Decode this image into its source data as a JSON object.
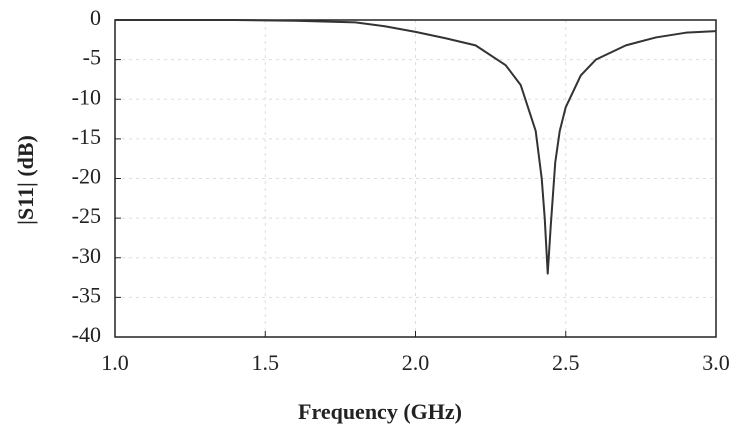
{
  "chart_data": {
    "type": "line",
    "xlabel": "Frequency (GHz)",
    "ylabel": "|S11| (dB)",
    "x": [
      1.0,
      1.2,
      1.4,
      1.6,
      1.8,
      1.9,
      2.0,
      2.1,
      2.2,
      2.3,
      2.35,
      2.4,
      2.42,
      2.43,
      2.44,
      2.45,
      2.465,
      2.48,
      2.5,
      2.55,
      2.6,
      2.7,
      2.8,
      2.9,
      3.0
    ],
    "values": [
      0,
      0,
      0,
      -0.1,
      -0.3,
      -0.8,
      -1.5,
      -2.3,
      -3.2,
      -5.7,
      -8.2,
      -14,
      -20,
      -25,
      -32,
      -26,
      -18,
      -14,
      -11,
      -7,
      -5,
      -3.2,
      -2.2,
      -1.6,
      -1.4
    ],
    "color": "#333333",
    "xlim": [
      1.0,
      3.0
    ],
    "xticks": [
      {
        "value": 1.0,
        "label": "1.0"
      },
      1.5,
      {
        "value": 2.0,
        "label": "2.0"
      },
      2.5,
      {
        "value": 3.0,
        "label": "3.0"
      }
    ],
    "ylim": [
      -40,
      0
    ],
    "yticks": [
      0,
      -5,
      -10,
      -15,
      -20,
      -25,
      -30,
      -35,
      -40
    ],
    "grid": true
  }
}
